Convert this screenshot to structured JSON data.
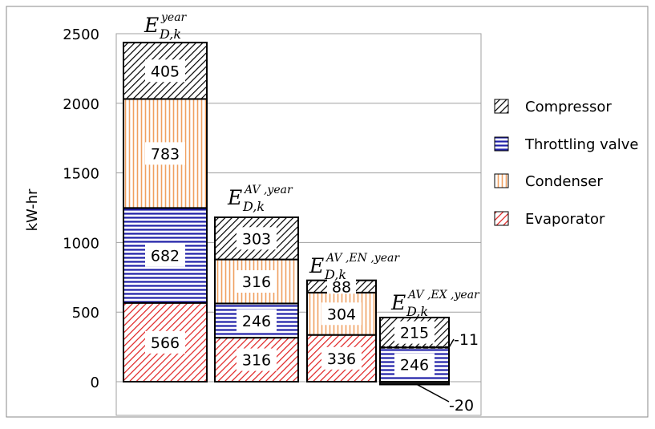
{
  "colors": {
    "compressor": "#000000",
    "throttling": "#1f1fa8",
    "condenser": "#f0a060",
    "evaporator": "#e02020"
  },
  "chart_data": {
    "type": "bar",
    "stacked": true,
    "ylabel": "kW-hr",
    "ylim": [
      -100,
      2500
    ],
    "yticks": [
      0,
      500,
      1000,
      1500,
      2000,
      2500
    ],
    "grid": true,
    "legend_position": "right",
    "categories": [
      {
        "base": "E",
        "sub": "D,k",
        "sup": "year"
      },
      {
        "base": "E",
        "sub": "D,k",
        "sup": "AV ,year"
      },
      {
        "base": "E",
        "sub": "D,k",
        "sup": "AV ,EN ,year"
      },
      {
        "base": "E",
        "sub": "D,k",
        "sup": "AV ,EX ,year"
      }
    ],
    "series": [
      {
        "name": "Evaporator",
        "values": [
          566,
          316,
          336,
          -20
        ],
        "labels": [
          "566",
          "316",
          "336",
          "-20"
        ]
      },
      {
        "name": "Throttling valve",
        "values": [
          682,
          246,
          0,
          246
        ],
        "labels": [
          "682",
          "246",
          "0",
          "246"
        ]
      },
      {
        "name": "Condenser",
        "values": [
          783,
          316,
          304,
          -11
        ],
        "labels": [
          "783",
          "316",
          "304",
          "-11"
        ]
      },
      {
        "name": "Compressor",
        "values": [
          405,
          303,
          88,
          215
        ],
        "labels": [
          "405",
          "303",
          "88",
          "215"
        ]
      }
    ]
  }
}
